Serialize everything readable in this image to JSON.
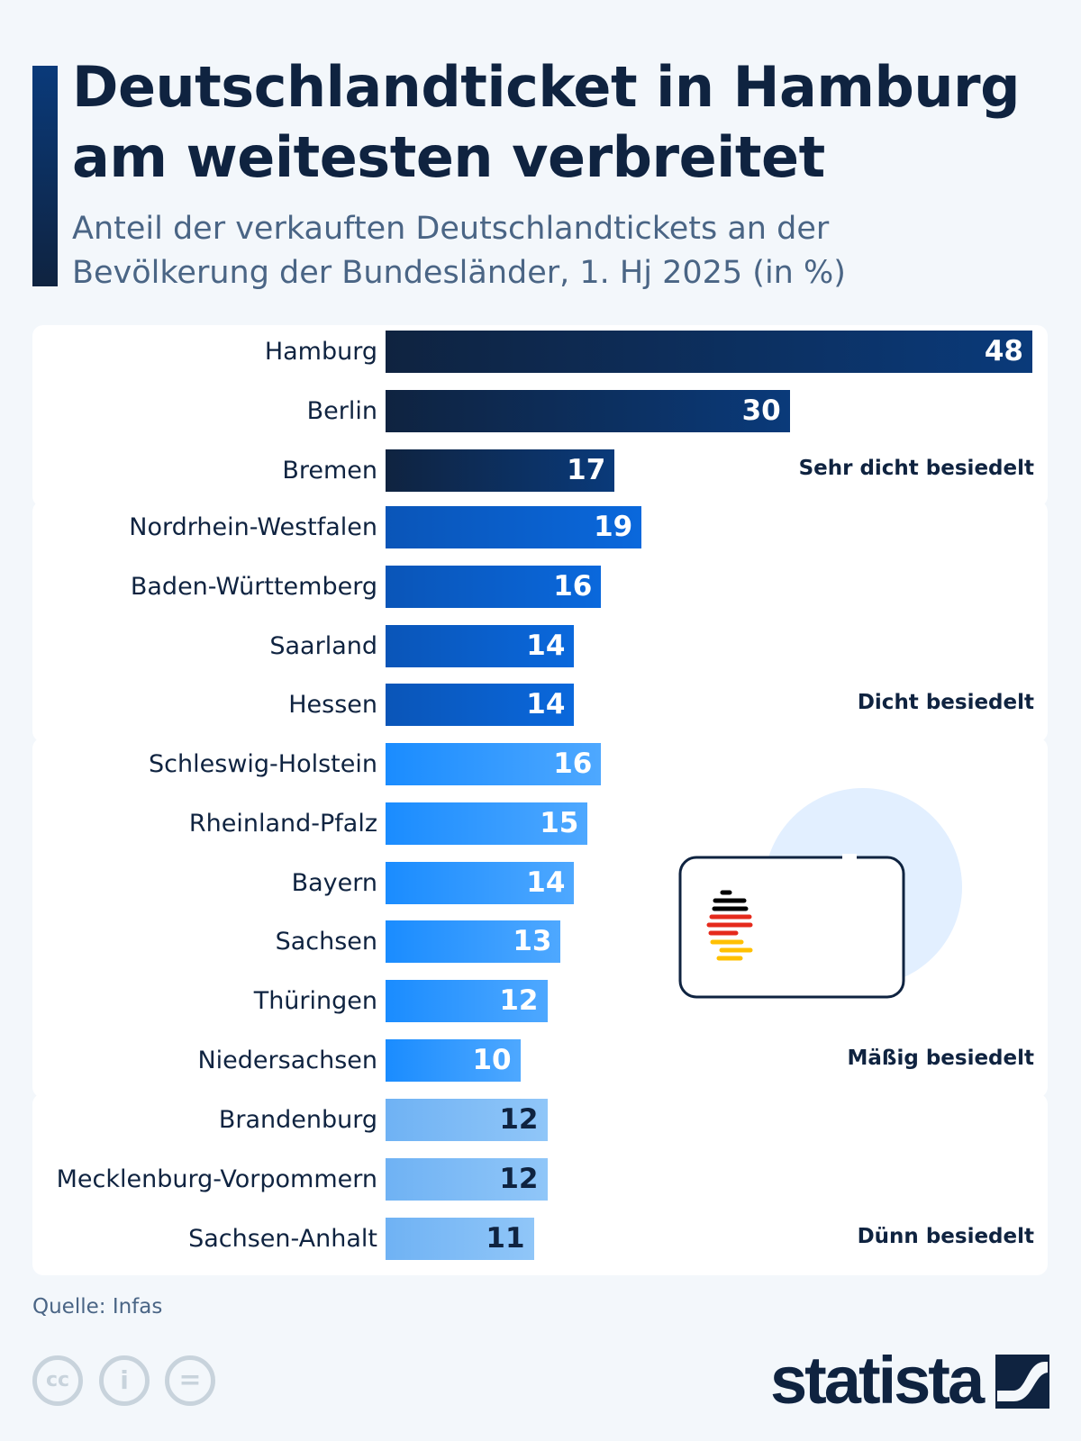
{
  "title": "Deutschlandticket in Hamburg am weitesten verbreitet",
  "subtitle": "Anteil der verkauften Deutschlandtickets an der Bevölkerung der Bundesländer, 1. Hj 2025 (in %)",
  "source": "Quelle: Infas",
  "brand": "statista",
  "chart_data": {
    "type": "bar",
    "orientation": "horizontal",
    "groups": [
      {
        "name": "Sehr dicht besiedelt",
        "color_start": "#0f2340",
        "color_end": "#0a3a7a",
        "label_color": "#ffffff",
        "categories": [
          "Hamburg",
          "Berlin",
          "Bremen"
        ],
        "values": [
          48,
          30,
          17
        ]
      },
      {
        "name": "Dicht besiedelt",
        "color_start": "#0a55b8",
        "color_end": "#0a68dc",
        "label_color": "#ffffff",
        "categories": [
          "Nordrhein-Westfalen",
          "Baden-Württemberg",
          "Saarland",
          "Hessen"
        ],
        "values": [
          19,
          16,
          14,
          14
        ]
      },
      {
        "name": "Mäßig besiedelt",
        "color_start": "#1a8cff",
        "color_end": "#4ea8ff",
        "label_color": "#ffffff",
        "categories": [
          "Schleswig-Holstein",
          "Rheinland-Pfalz",
          "Bayern",
          "Sachsen",
          "Thüringen",
          "Niedersachsen"
        ],
        "values": [
          16,
          15,
          14,
          13,
          12,
          10
        ]
      },
      {
        "name": "Dünn besiedelt",
        "color_start": "#6fb2f4",
        "color_end": "#90c6f8",
        "label_color": "#0f2340",
        "categories": [
          "Brandenburg",
          "Mecklenburg-Vorpommern",
          "Sachsen-Anhalt"
        ],
        "values": [
          12,
          12,
          11
        ]
      }
    ],
    "xlim": [
      0,
      48
    ]
  }
}
